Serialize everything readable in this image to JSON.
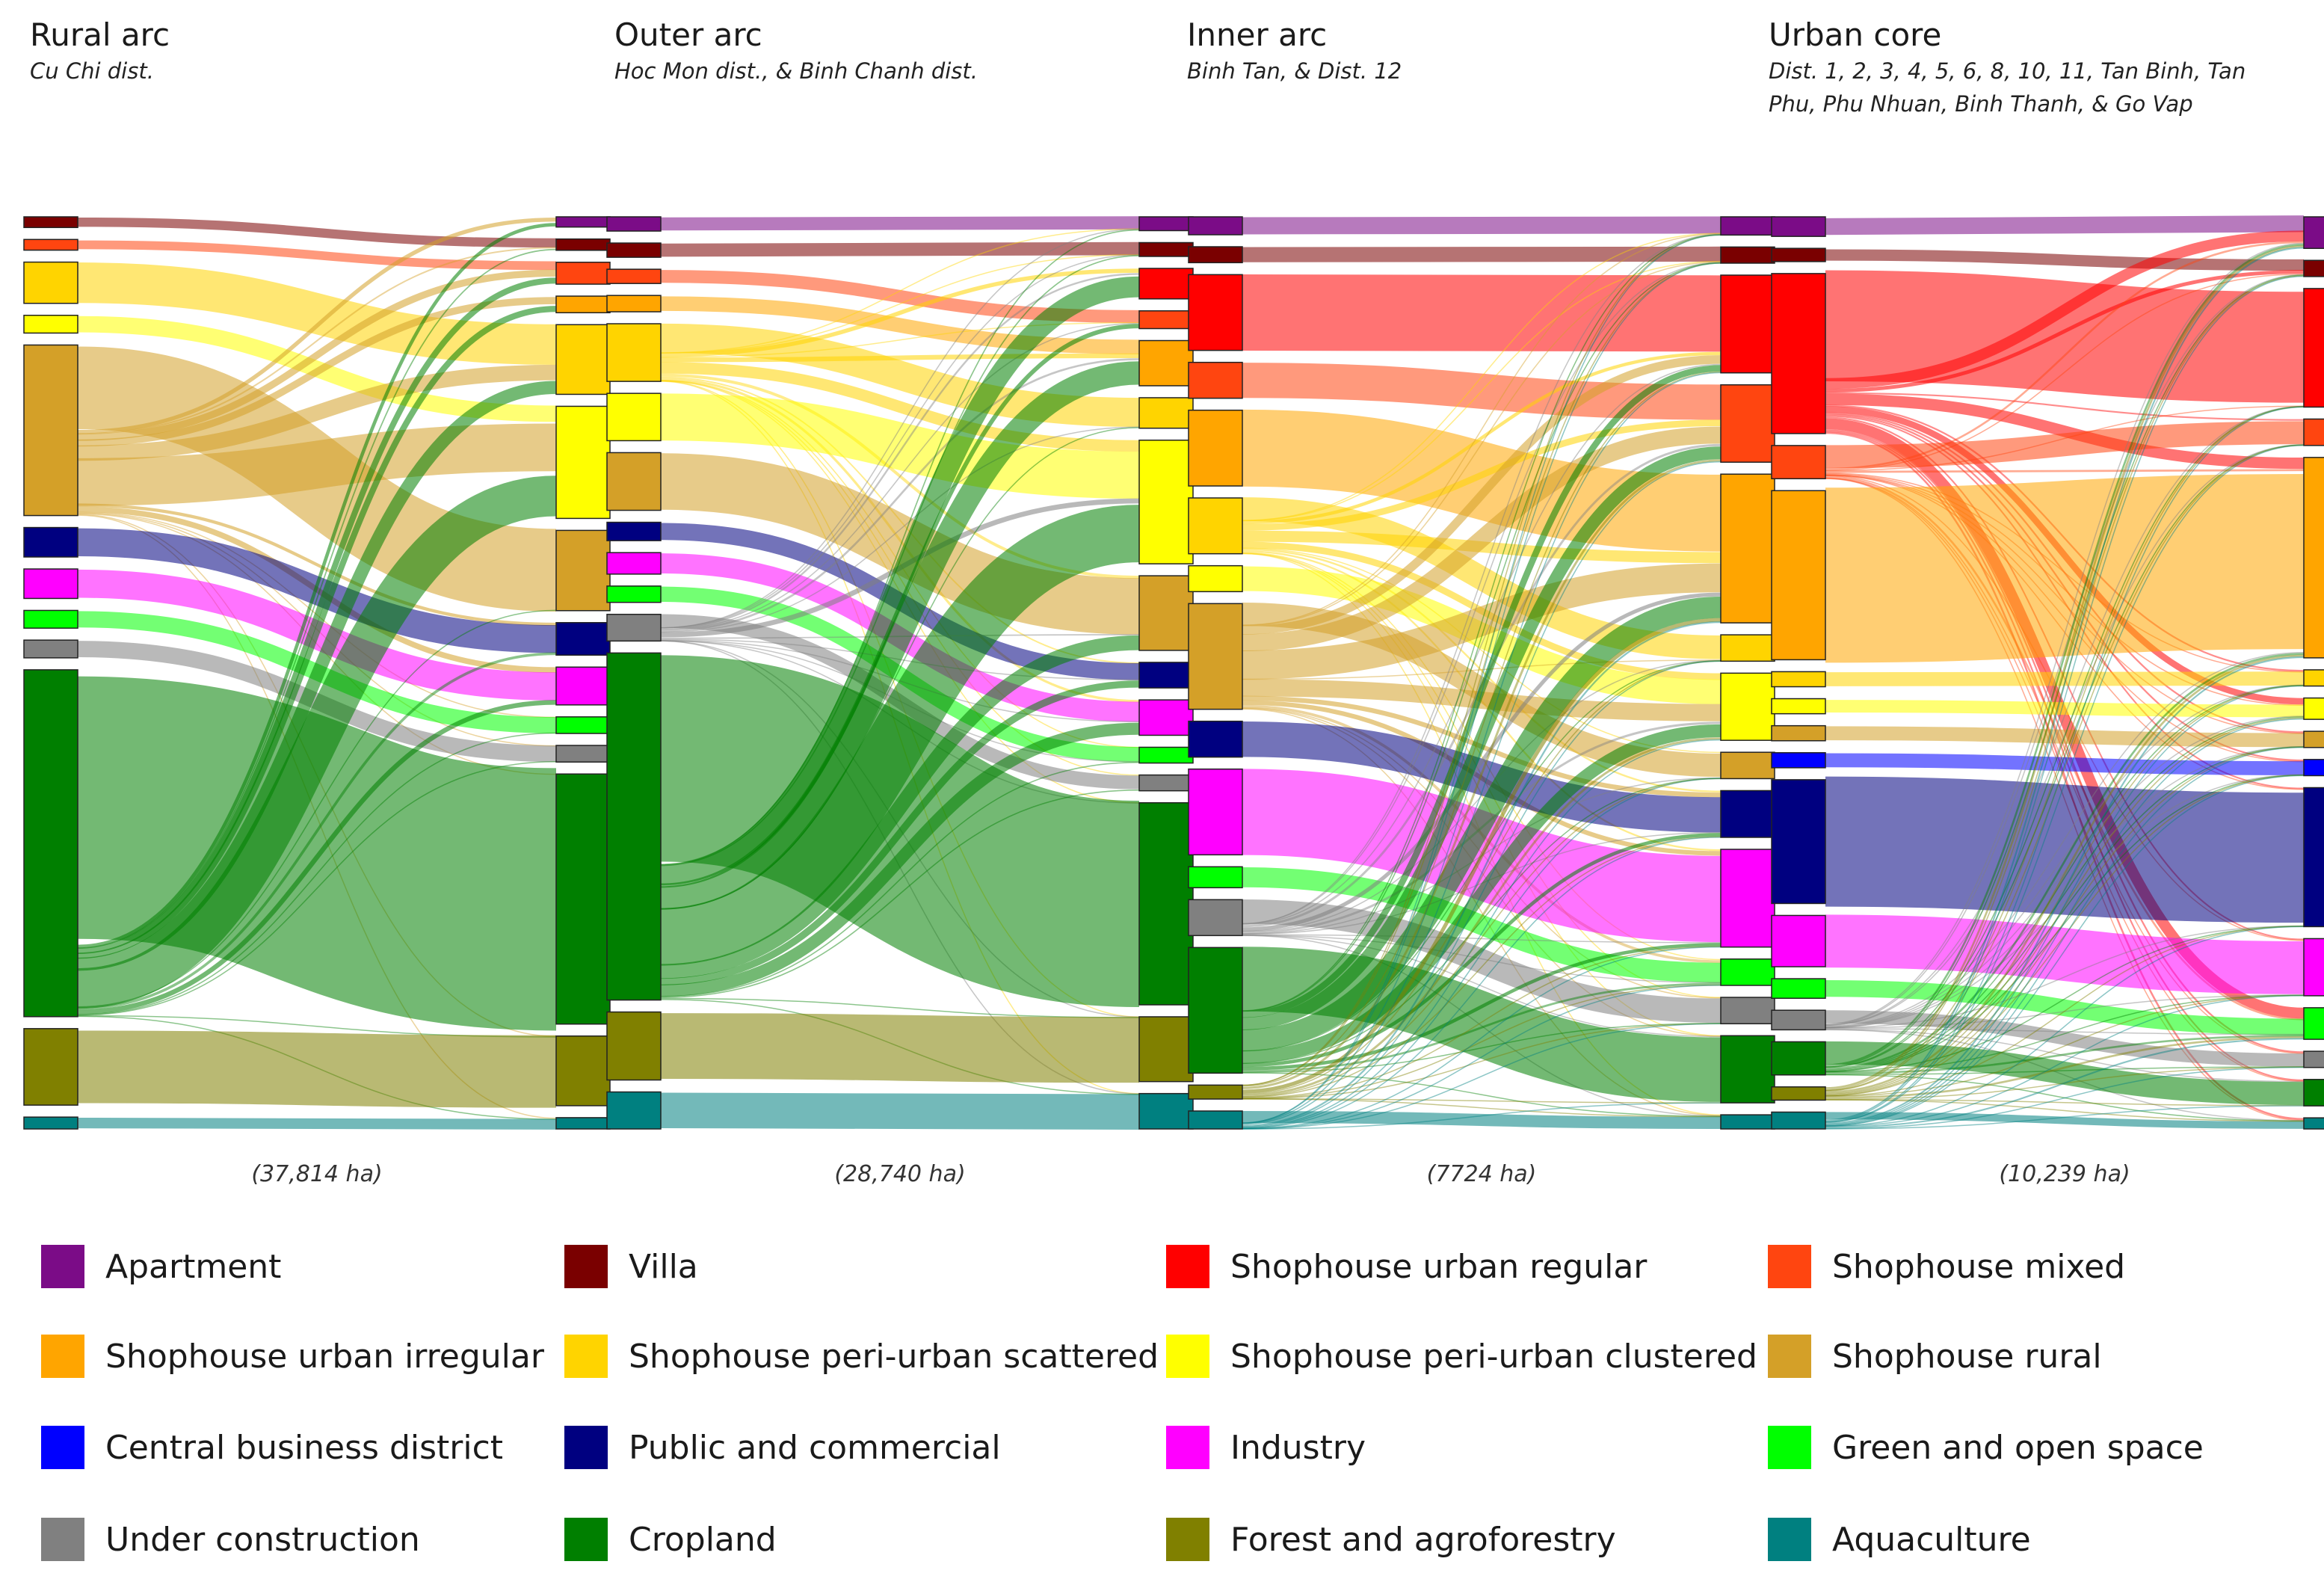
{
  "panels": [
    {
      "title": "Rural arc",
      "subtitle": "Cu Chi dist.",
      "area": "(37,814 ha)"
    },
    {
      "title": "Outer arc",
      "subtitle": "Hoc Mon dist., & Binh Chanh dist.",
      "area": "(28,740 ha)"
    },
    {
      "title": "Inner arc",
      "subtitle": "Binh Tan, & Dist. 12",
      "area": "(7724 ha)"
    },
    {
      "title": "Urban core",
      "subtitle": "Dist. 1, 2, 3, 4, 5, 6, 8, 10, 11, Tan Binh, Tan Phu, Phu Nhuan, Binh Thanh, & Go Vap",
      "area": "(10,239 ha)"
    }
  ],
  "legend": [
    {
      "label": "Apartment",
      "color": "#7b0c87"
    },
    {
      "label": "Villa",
      "color": "#7a0000"
    },
    {
      "label": "Shophouse urban regular",
      "color": "#ff0000"
    },
    {
      "label": "Shophouse mixed",
      "color": "#ff4510"
    },
    {
      "label": "Shophouse urban irregular",
      "color": "#ffa500"
    },
    {
      "label": "Shophouse peri-urban scattered",
      "color": "#ffd400"
    },
    {
      "label": "Shophouse peri-urban clustered",
      "color": "#ffff00"
    },
    {
      "label": "Shophouse rural",
      "color": "#d4a028"
    },
    {
      "label": "Central business district",
      "color": "#0000ff"
    },
    {
      "label": "Public and commercial",
      "color": "#000080"
    },
    {
      "label": "Industry",
      "color": "#ff00ff"
    },
    {
      "label": "Green and open space",
      "color": "#00ff00"
    },
    {
      "label": "Under construction",
      "color": "#808080"
    },
    {
      "label": "Cropland",
      "color": "#007f00"
    },
    {
      "label": "Forest and agroforestry",
      "color": "#808000"
    },
    {
      "label": "Aquaculture",
      "color": "#008080"
    }
  ],
  "chart_data": [
    {
      "type": "sankey",
      "title": "Rural arc",
      "area_ha": 37814,
      "unit": "relative share of land area (approximate, read from node heights)",
      "left_nodes": {
        "Apartment": 0,
        "Villa": 0.4,
        "Shophouse urban regular": 0,
        "Shophouse mixed": 0.4,
        "Shophouse urban irregular": 0,
        "Shophouse peri-urban scattered": 3,
        "Shophouse peri-urban clustered": 1,
        "Shophouse rural": 14,
        "Central business district": 0,
        "Public and commercial": 2,
        "Industry": 2,
        "Green and open space": 1,
        "Under construction": 1,
        "Cropland": 29,
        "Forest and agroforestry": 6,
        "Aquaculture": 0.5
      },
      "right_nodes": {
        "Apartment": 0.4,
        "Villa": 0.5,
        "Shophouse urban regular": 0,
        "Shophouse mixed": 1.5,
        "Shophouse urban irregular": 1,
        "Shophouse peri-urban scattered": 6,
        "Shophouse peri-urban clustered": 10,
        "Shophouse rural": 7,
        "Central business district": 0,
        "Public and commercial": 2.5,
        "Industry": 3,
        "Green and open space": 1,
        "Under construction": 1,
        "Cropland": 23,
        "Forest and agroforestry": 6,
        "Aquaculture": 0.5
      }
    },
    {
      "type": "sankey",
      "title": "Outer arc",
      "area_ha": 28740,
      "unit": "relative share of land area (approximate, read from node heights)",
      "left_nodes": {
        "Apartment": 0.8,
        "Villa": 0.8,
        "Shophouse urban regular": 0,
        "Shophouse mixed": 0.8,
        "Shophouse urban irregular": 1,
        "Shophouse peri-urban scattered": 5,
        "Shophouse peri-urban clustered": 4,
        "Shophouse rural": 5,
        "Central business district": 0,
        "Public and commercial": 1.2,
        "Industry": 1.5,
        "Green and open space": 1,
        "Under construction": 2,
        "Cropland": 33,
        "Forest and agroforestry": 6,
        "Aquaculture": 3
      },
      "right_nodes": {
        "Apartment": 0.8,
        "Villa": 0.8,
        "Shophouse urban regular": 2.5,
        "Shophouse mixed": 1.2,
        "Shophouse urban irregular": 4,
        "Shophouse peri-urban scattered": 2.5,
        "Shophouse peri-urban clustered": 12,
        "Shophouse rural": 7,
        "Central business district": 0,
        "Public and commercial": 2,
        "Industry": 3,
        "Green and open space": 1,
        "Under construction": 1,
        "Cropland": 20,
        "Forest and agroforestry": 6,
        "Aquaculture": 3
      }
    },
    {
      "type": "sankey",
      "title": "Inner arc",
      "area_ha": 7724,
      "unit": "relative share of land area (approximate, read from node heights)",
      "left_nodes": {
        "Apartment": 1.2,
        "Villa": 1,
        "Shophouse urban regular": 7,
        "Shophouse mixed": 3,
        "Shophouse urban irregular": 7,
        "Shophouse peri-urban scattered": 5,
        "Shophouse peri-urban clustered": 2,
        "Shophouse rural": 10,
        "Central business district": 0,
        "Public and commercial": 3,
        "Industry": 8,
        "Green and open space": 1.5,
        "Under construction": 3,
        "Cropland": 12,
        "Forest and agroforestry": 0.8,
        "Aquaculture": 1.2
      },
      "right_nodes": {
        "Apartment": 1.2,
        "Villa": 1,
        "Shophouse urban regular": 9,
        "Shophouse mixed": 7,
        "Shophouse urban irregular": 14,
        "Shophouse peri-urban scattered": 2,
        "Shophouse peri-urban clustered": 6,
        "Shophouse rural": 2,
        "Central business district": 0,
        "Public and commercial": 4,
        "Industry": 9,
        "Green and open space": 2,
        "Under construction": 2,
        "Cropland": 6,
        "Forest and agroforestry": 0,
        "Aquaculture": 0.8
      }
    },
    {
      "type": "sankey",
      "title": "Urban core",
      "area_ha": 10239,
      "unit": "relative share of land area (approximate, read from node heights)",
      "left_nodes": {
        "Apartment": 1.5,
        "Villa": 0.8,
        "Shophouse urban regular": 17,
        "Shophouse mixed": 3,
        "Shophouse urban irregular": 18,
        "Shophouse peri-urban scattered": 1,
        "Shophouse peri-urban clustered": 1,
        "Shophouse rural": 1,
        "Central business district": 1,
        "Public and commercial": 13,
        "Industry": 5,
        "Green and open space": 1.5,
        "Under construction": 1.5,
        "Cropland": 3,
        "Forest and agroforestry": 0.8,
        "Aquaculture": 1.2
      },
      "right_nodes": {
        "Apartment": 2.5,
        "Villa": 1,
        "Shophouse urban regular": 11,
        "Shophouse mixed": 2,
        "Shophouse urban irregular": 19,
        "Shophouse peri-urban scattered": 1,
        "Shophouse peri-urban clustered": 1.5,
        "Shophouse rural": 1,
        "Central business district": 1,
        "Public and commercial": 13,
        "Industry": 5,
        "Green and open space": 2.5,
        "Under construction": 1,
        "Cropland": 2,
        "Forest and agroforestry": 0,
        "Aquaculture": 0.5
      }
    }
  ]
}
